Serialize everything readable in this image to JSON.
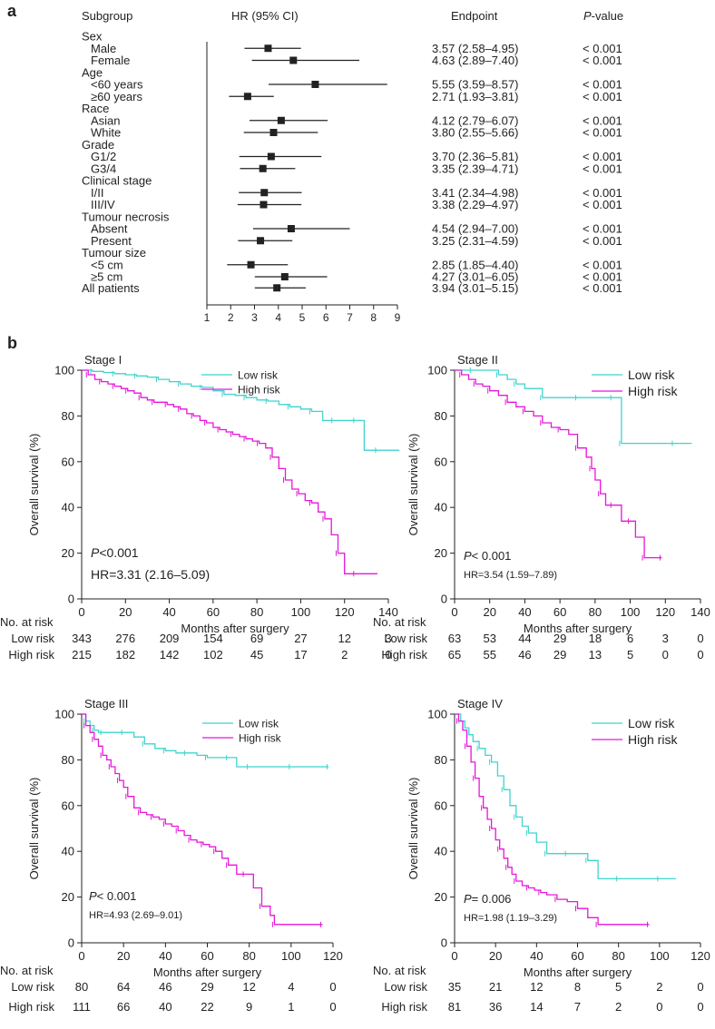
{
  "panel_a": {
    "label": "a",
    "headers": {
      "subgroup": "Subgroup",
      "hr": "HR (95% CI)",
      "endpoint": "Endpoint",
      "p_italic": "P",
      "p_rest": "-value"
    },
    "rows": [
      {
        "text": "Sex",
        "header": true
      },
      {
        "text": "Male",
        "hr": 3.57,
        "lo": 2.58,
        "hi": 4.95,
        "ci": "3.57 (2.58–4.95)",
        "p": "< 0.001"
      },
      {
        "text": "Female",
        "hr": 4.63,
        "lo": 2.89,
        "hi": 7.4,
        "ci": "4.63 (2.89–7.40)",
        "p": "< 0.001"
      },
      {
        "text": "Age",
        "header": true
      },
      {
        "text": "<60 years",
        "hr": 5.55,
        "lo": 3.59,
        "hi": 8.57,
        "ci": "5.55 (3.59–8.57)",
        "p": "< 0.001"
      },
      {
        "text": "≥60 years",
        "hr": 2.71,
        "lo": 1.93,
        "hi": 3.81,
        "ci": "2.71 (1.93–3.81)",
        "p": "< 0.001"
      },
      {
        "text": "Race",
        "header": true
      },
      {
        "text": "Asian",
        "hr": 4.12,
        "lo": 2.79,
        "hi": 6.07,
        "ci": "4.12 (2.79–6.07)",
        "p": "< 0.001"
      },
      {
        "text": "White",
        "hr": 3.8,
        "lo": 2.55,
        "hi": 5.66,
        "ci": "3.80 (2.55–5.66)",
        "p": "< 0.001"
      },
      {
        "text": "Grade",
        "header": true
      },
      {
        "text": "G1/2",
        "hr": 3.7,
        "lo": 2.36,
        "hi": 5.81,
        "ci": "3.70 (2.36–5.81)",
        "p": "< 0.001"
      },
      {
        "text": "G3/4",
        "hr": 3.35,
        "lo": 2.39,
        "hi": 4.71,
        "ci": "3.35 (2.39–4.71)",
        "p": "< 0.001"
      },
      {
        "text": "Clinical stage",
        "header": true
      },
      {
        "text": "I/II",
        "hr": 3.41,
        "lo": 2.34,
        "hi": 4.98,
        "ci": "3.41 (2.34–4.98)",
        "p": "< 0.001"
      },
      {
        "text": "III/IV",
        "hr": 3.38,
        "lo": 2.29,
        "hi": 4.97,
        "ci": "3.38 (2.29–4.97)",
        "p": "< 0.001"
      },
      {
        "text": "Tumour necrosis",
        "header": true
      },
      {
        "text": "Absent",
        "hr": 4.54,
        "lo": 2.94,
        "hi": 7.0,
        "ci": "4.54 (2.94–7.00)",
        "p": "< 0.001"
      },
      {
        "text": "Present",
        "hr": 3.25,
        "lo": 2.31,
        "hi": 4.59,
        "ci": "3.25 (2.31–4.59)",
        "p": "< 0.001"
      },
      {
        "text": "Tumour size",
        "header": true
      },
      {
        "text": "<5 cm",
        "hr": 2.85,
        "lo": 1.85,
        "hi": 4.4,
        "ci": "2.85 (1.85–4.40)",
        "p": "< 0.001"
      },
      {
        "text": "≥5 cm",
        "hr": 4.27,
        "lo": 3.01,
        "hi": 6.05,
        "ci": "4.27 (3.01–6.05)",
        "p": "< 0.001"
      },
      {
        "text": "All patients",
        "hr": 3.94,
        "lo": 3.01,
        "hi": 5.15,
        "ci": "3.94 (3.01–5.15)",
        "p": "< 0.001",
        "top": true
      }
    ],
    "axis_ticks": [
      1,
      2,
      3,
      4,
      5,
      6,
      7,
      8,
      9
    ]
  },
  "panel_b_label": "b",
  "colors": {
    "low": "#3fd4cd",
    "high": "#e616d9",
    "ink": "#222222"
  },
  "chart_data": [
    {
      "type": "line",
      "title": "Stage I",
      "xlabel": "Months after surgery",
      "ylabel": "Overall survival (%)",
      "xlim": [
        0,
        140
      ],
      "ylim": [
        0,
        100
      ],
      "xticks": [
        0,
        20,
        40,
        60,
        80,
        100,
        120,
        140
      ],
      "yticks": [
        0,
        20,
        40,
        60,
        80,
        100
      ],
      "p_label": "P",
      "p_value": "<0.001",
      "hr_text": "HR=3.31 (2.16–5.09)",
      "stat_size": "large",
      "legend": [
        "Low risk",
        "High risk"
      ],
      "series": [
        {
          "name": "Low risk",
          "x": [
            0,
            5,
            10,
            15,
            20,
            25,
            30,
            35,
            40,
            45,
            50,
            55,
            60,
            65,
            70,
            75,
            80,
            85,
            90,
            95,
            100,
            105,
            110,
            115,
            120,
            125,
            129,
            135,
            145
          ],
          "y": [
            100,
            99.5,
            99,
            98.5,
            98,
            97.5,
            97,
            96,
            95,
            94,
            93,
            92.5,
            91,
            89.5,
            89,
            88,
            87,
            86.5,
            85,
            84,
            83,
            82,
            78,
            78,
            78,
            78,
            65,
            65,
            65
          ]
        },
        {
          "name": "High risk",
          "x": [
            0,
            3,
            6,
            9,
            12,
            15,
            18,
            21,
            24,
            27,
            30,
            33,
            36,
            39,
            42,
            45,
            48,
            51,
            54,
            57,
            60,
            63,
            66,
            69,
            72,
            75,
            78,
            81,
            84,
            87,
            90,
            93,
            96,
            99,
            102,
            105,
            108,
            111,
            114,
            117,
            120,
            125,
            135
          ],
          "y": [
            100,
            98,
            96,
            95,
            94,
            93,
            92,
            91,
            90,
            88,
            87,
            86,
            86,
            85,
            84,
            83,
            81,
            80,
            78,
            77,
            75,
            74,
            73,
            72,
            71,
            70,
            69,
            68,
            66,
            62,
            57,
            52,
            48,
            46,
            43,
            42,
            38,
            35,
            28,
            20,
            11,
            11,
            11
          ]
        }
      ],
      "at_risk_header": "No. at risk",
      "at_risk": [
        {
          "label": "Low risk",
          "counts": [
            343,
            276,
            209,
            154,
            69,
            27,
            12,
            3
          ]
        },
        {
          "label": "High risk",
          "counts": [
            215,
            182,
            142,
            102,
            45,
            17,
            2,
            0
          ]
        }
      ]
    },
    {
      "type": "line",
      "title": "Stage II",
      "xlabel": "Months after surgery",
      "ylabel": "Overall survival (%)",
      "xlim": [
        0,
        140
      ],
      "ylim": [
        0,
        100
      ],
      "xticks": [
        0,
        20,
        40,
        60,
        80,
        100,
        120,
        140
      ],
      "yticks": [
        0,
        20,
        40,
        60,
        80,
        100
      ],
      "p_label": "P",
      "p_value": "< 0.001",
      "hr_text": "HR=3.54 (1.59–7.89)",
      "stat_size": "small",
      "legend": [
        "Low risk",
        "High risk"
      ],
      "series": [
        {
          "name": "Low risk",
          "x": [
            0,
            10,
            20,
            25,
            30,
            35,
            40,
            50,
            60,
            70,
            80,
            90,
            94,
            95,
            110,
            125,
            135
          ],
          "y": [
            100,
            100,
            100,
            98,
            96,
            94,
            92,
            88,
            88,
            88,
            88,
            88,
            88,
            68,
            68,
            68,
            68
          ]
        },
        {
          "name": "High risk",
          "x": [
            0,
            4,
            8,
            12,
            16,
            20,
            25,
            30,
            35,
            40,
            45,
            50,
            55,
            60,
            65,
            70,
            75,
            78,
            80,
            83,
            86,
            90,
            95,
            100,
            103,
            108,
            112,
            118
          ],
          "y": [
            100,
            98,
            96,
            94,
            93,
            91,
            89,
            86,
            84,
            82,
            80,
            77,
            75,
            74,
            72,
            66,
            62,
            57,
            52,
            46,
            41,
            41,
            34,
            34,
            27,
            18,
            18,
            18
          ]
        }
      ],
      "at_risk_header": "No. at risk",
      "at_risk": [
        {
          "label": "Low risk",
          "counts": [
            63,
            53,
            44,
            29,
            18,
            6,
            3,
            0
          ]
        },
        {
          "label": "High risk",
          "counts": [
            65,
            55,
            46,
            29,
            13,
            5,
            0,
            0
          ]
        }
      ]
    },
    {
      "type": "line",
      "title": "Stage III",
      "xlabel": "Months after surgery",
      "ylabel": "Overall survival (%)",
      "xlim": [
        0,
        120
      ],
      "ylim": [
        0,
        100
      ],
      "xticks": [
        0,
        20,
        40,
        60,
        80,
        100,
        120
      ],
      "yticks": [
        0,
        20,
        40,
        60,
        80,
        100
      ],
      "p_label": "P",
      "p_value": "< 0.001",
      "hr_text": "HR=4.93 (2.69–9.01)",
      "stat_size": "small",
      "legend": [
        "Low risk",
        "High risk"
      ],
      "series": [
        {
          "name": "Low risk",
          "x": [
            0,
            2,
            4,
            6,
            8,
            10,
            15,
            20,
            25,
            30,
            35,
            40,
            45,
            50,
            55,
            60,
            65,
            70,
            74,
            80,
            90,
            100,
            110,
            118
          ],
          "y": [
            100,
            97,
            95,
            93,
            92,
            92,
            92,
            92,
            90,
            87,
            85,
            84,
            83,
            83,
            82,
            81,
            81,
            81,
            77,
            77,
            77,
            77,
            77,
            77
          ]
        },
        {
          "name": "High risk",
          "x": [
            0,
            2,
            4,
            6,
            8,
            10,
            12,
            14,
            16,
            18,
            20,
            22,
            25,
            28,
            31,
            34,
            37,
            40,
            43,
            46,
            49,
            52,
            55,
            58,
            61,
            64,
            67,
            70,
            74,
            78,
            82,
            86,
            90,
            92,
            100,
            115
          ],
          "y": [
            100,
            95,
            92,
            89,
            86,
            82,
            80,
            77,
            74,
            71,
            68,
            64,
            59,
            57,
            56,
            55,
            54,
            52,
            51,
            49,
            47,
            45,
            44,
            43,
            42,
            40,
            37,
            34,
            30,
            30,
            24,
            16,
            12,
            8,
            8,
            8
          ]
        }
      ],
      "at_risk_header": "No. at risk",
      "at_risk": [
        {
          "label": "Low risk",
          "counts": [
            80,
            64,
            46,
            29,
            12,
            4,
            0
          ]
        },
        {
          "label": "High risk",
          "counts": [
            111,
            66,
            40,
            22,
            9,
            1,
            0
          ]
        }
      ]
    },
    {
      "type": "line",
      "title": "Stage IV",
      "xlabel": "Months after surgery",
      "ylabel": "Overall survival (%)",
      "xlim": [
        0,
        120
      ],
      "ylim": [
        0,
        100
      ],
      "xticks": [
        0,
        20,
        40,
        60,
        80,
        100,
        120
      ],
      "yticks": [
        0,
        20,
        40,
        60,
        80,
        100
      ],
      "p_label": "P",
      "p_value": "= 0.006",
      "hr_text": "HR=1.98 (1.19–3.29)",
      "stat_size": "small",
      "legend": [
        "Low risk",
        "High risk"
      ],
      "series": [
        {
          "name": "Low risk",
          "x": [
            0,
            3,
            5,
            7,
            9,
            12,
            15,
            18,
            21,
            24,
            27,
            30,
            33,
            36,
            40,
            45,
            50,
            55,
            60,
            65,
            70,
            80,
            90,
            100,
            108
          ],
          "y": [
            100,
            97,
            94,
            91,
            88,
            85,
            82,
            79,
            73,
            67,
            60,
            55,
            51,
            48,
            44,
            39,
            39,
            39,
            39,
            36,
            28,
            28,
            28,
            28,
            28
          ]
        },
        {
          "name": "High risk",
          "x": [
            0,
            2,
            4,
            6,
            8,
            10,
            12,
            14,
            16,
            18,
            20,
            22,
            24,
            26,
            28,
            30,
            33,
            36,
            39,
            42,
            45,
            50,
            55,
            60,
            65,
            70,
            80,
            95
          ],
          "y": [
            100,
            97,
            93,
            86,
            79,
            72,
            64,
            59,
            54,
            50,
            45,
            41,
            37,
            33,
            30,
            27,
            25,
            24,
            23,
            22,
            21,
            19,
            18,
            15,
            11,
            8,
            8,
            8
          ]
        }
      ],
      "at_risk_header": "No. at risk",
      "at_risk": [
        {
          "label": "Low risk",
          "counts": [
            35,
            21,
            12,
            8,
            5,
            2,
            0
          ]
        },
        {
          "label": "High risk",
          "counts": [
            81,
            36,
            14,
            7,
            2,
            0,
            0
          ]
        }
      ]
    }
  ]
}
